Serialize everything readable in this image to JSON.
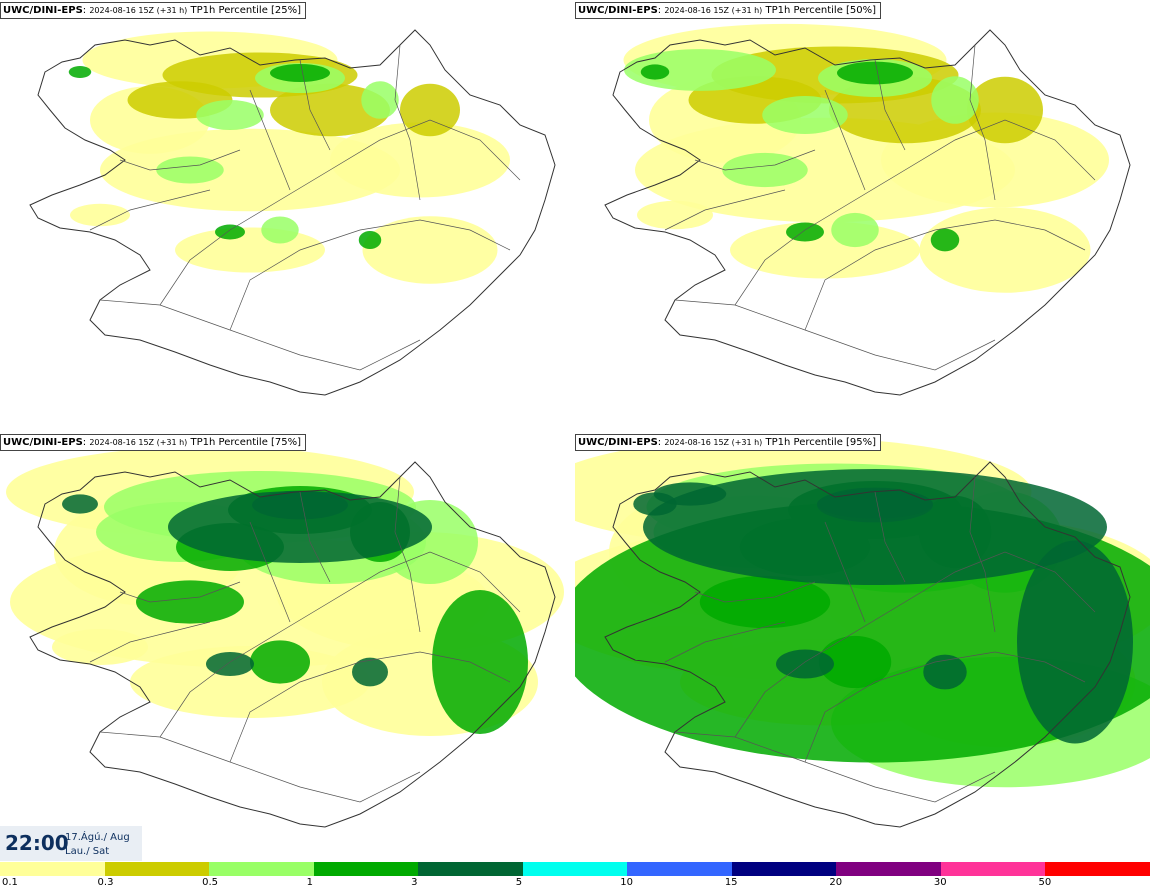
{
  "panels": [
    {
      "model": "UWC/DINI-EPS",
      "run": "2024-08-16 15Z (+31 h)",
      "field": "TP1h Percentile [25%]"
    },
    {
      "model": "UWC/DINI-EPS",
      "run": "2024-08-16 15Z (+31 h)",
      "field": "TP1h Percentile [50%]"
    },
    {
      "model": "UWC/DINI-EPS",
      "run": "2024-08-16 15Z (+31 h)",
      "field": "TP1h Percentile [75%]"
    },
    {
      "model": "UWC/DINI-EPS",
      "run": "2024-08-16 15Z (+31 h)",
      "field": "TP1h Percentile [95%]"
    }
  ],
  "valid_time": {
    "time": "22:00",
    "date": "17.Ágú./ Aug",
    "day": "Lau./ Sat"
  },
  "legend": {
    "labels": [
      "0.1",
      "0.3",
      "0.5",
      "1",
      "3",
      "5",
      "10",
      "15",
      "20",
      "30",
      "50"
    ],
    "colors": [
      "#ffff99",
      "#cccc00",
      "#99ff66",
      "#00aa00",
      "#006633",
      "#00ffee",
      "#3366ff",
      "#000080",
      "#800080",
      "#ff3399",
      "#ff0000"
    ]
  }
}
